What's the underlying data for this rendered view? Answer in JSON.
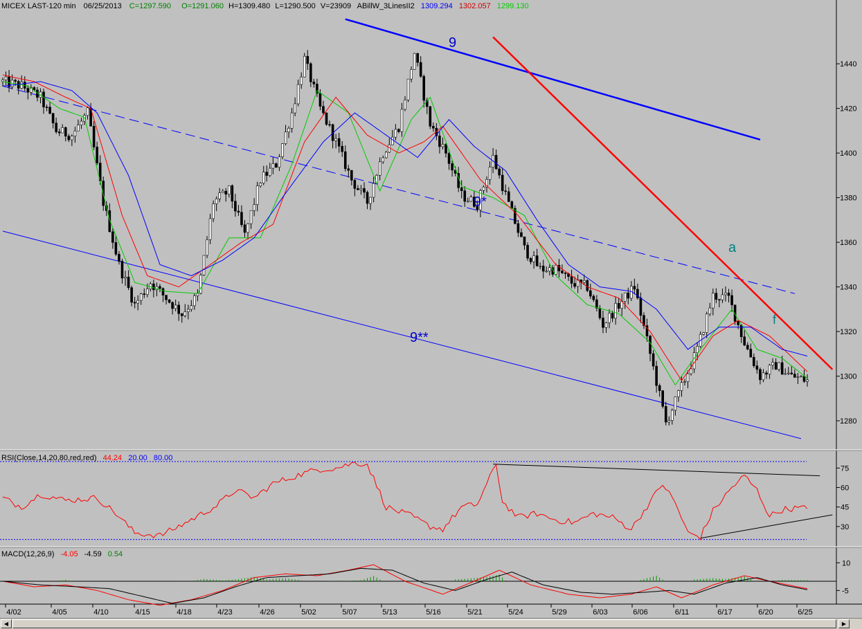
{
  "header": {
    "symbol": "MICEX LAST-120 min",
    "date": "06/25/2013",
    "close": "C=1297.590",
    "open": "O=1291.060",
    "high": "H=1309.480",
    "low": "L=1290.500",
    "volume": "V=23909",
    "indicator": "ABillW_3LinesII2",
    "ind_blue": "1309.294",
    "ind_red": "1302.057",
    "ind_green": "1299.130"
  },
  "rsi_header": {
    "label": "RSI(Close,14,20,80,red,red)",
    "value": "44.24",
    "low": "20.00",
    "high": "80.00"
  },
  "macd_header": {
    "label": "MACD(12,26,9)",
    "v1": "-4.05",
    "v2": "-4.59",
    "v3": "0.54"
  },
  "annotations": {
    "wave_9": "9",
    "wave_9s": "9*",
    "wave_9ss": "9**",
    "wave_a": "a",
    "wave_f": "f"
  },
  "colors": {
    "bg": "#c0c0c0",
    "blue": "#0000ff",
    "red": "#ff0000",
    "green": "#00cc00",
    "teal": "#008080",
    "ann_blue": "#0000cc"
  },
  "chart_data": [
    {
      "type": "candlestick",
      "panel": "price",
      "title": "MICEX LAST-120 min",
      "x_tick_labels": [
        "4/02",
        "4/05",
        "4/10",
        "4/15",
        "4/18",
        "4/23",
        "4/26",
        "5/02",
        "5/07",
        "5/13",
        "5/16",
        "5/21",
        "5/24",
        "5/29",
        "6/03",
        "6/06",
        "6/11",
        "6/17",
        "6/20",
        "6/25"
      ],
      "y_ticks": [
        1280,
        1300,
        1320,
        1340,
        1360,
        1380,
        1400,
        1420,
        1440
      ],
      "ylim": [
        1267,
        1463
      ],
      "close_path": [
        [
          0,
          1432
        ],
        [
          6,
          1430
        ],
        [
          12,
          1425
        ],
        [
          17,
          1410
        ],
        [
          22,
          1408
        ],
        [
          27,
          1418
        ],
        [
          32,
          1378
        ],
        [
          37,
          1350
        ],
        [
          42,
          1332
        ],
        [
          47,
          1342
        ],
        [
          52,
          1335
        ],
        [
          57,
          1328
        ],
        [
          62,
          1336
        ],
        [
          67,
          1378
        ],
        [
          72,
          1383
        ],
        [
          77,
          1363
        ],
        [
          82,
          1388
        ],
        [
          87,
          1395
        ],
        [
          92,
          1418
        ],
        [
          96,
          1442
        ],
        [
          101,
          1420
        ],
        [
          106,
          1405
        ],
        [
          111,
          1388
        ],
        [
          116,
          1378
        ],
        [
          121,
          1400
        ],
        [
          126,
          1412
        ],
        [
          131,
          1445
        ],
        [
          136,
          1413
        ],
        [
          141,
          1400
        ],
        [
          146,
          1381
        ],
        [
          151,
          1377
        ],
        [
          156,
          1398
        ],
        [
          161,
          1377
        ],
        [
          166,
          1357
        ],
        [
          171,
          1348
        ],
        [
          176,
          1348
        ],
        [
          181,
          1342
        ],
        [
          186,
          1340
        ],
        [
          191,
          1323
        ],
        [
          196,
          1332
        ],
        [
          201,
          1340
        ],
        [
          206,
          1310
        ],
        [
          211,
          1279
        ],
        [
          216,
          1295
        ],
        [
          221,
          1312
        ],
        [
          226,
          1336
        ],
        [
          231,
          1335
        ],
        [
          236,
          1315
        ],
        [
          241,
          1300
        ],
        [
          246,
          1305
        ],
        [
          251,
          1300
        ],
        [
          256,
          1298
        ]
      ],
      "x_note": "bar index (0-based, 256 = last bar 6/25)"
    },
    {
      "type": "line",
      "panel": "price",
      "name": "ABillW_3LinesII2",
      "series": [
        {
          "color": "green",
          "points": [
            [
              0,
              1432
            ],
            [
              8,
              1430
            ],
            [
              18,
              1420
            ],
            [
              26,
              1416
            ],
            [
              34,
              1370
            ],
            [
              42,
              1342
            ],
            [
              52,
              1338
            ],
            [
              62,
              1337
            ],
            [
              72,
              1362
            ],
            [
              82,
              1362
            ],
            [
              92,
              1395
            ],
            [
              100,
              1428
            ],
            [
              110,
              1418
            ],
            [
              120,
              1383
            ],
            [
              130,
              1415
            ],
            [
              136,
              1425
            ],
            [
              146,
              1385
            ],
            [
              156,
              1380
            ],
            [
              166,
              1372
            ],
            [
              176,
              1345
            ],
            [
              186,
              1332
            ],
            [
              196,
              1328
            ],
            [
              206,
              1315
            ],
            [
              214,
              1296
            ],
            [
              222,
              1312
            ],
            [
              232,
              1330
            ],
            [
              240,
              1312
            ],
            [
              248,
              1308
            ],
            [
              256,
              1299
            ]
          ]
        },
        {
          "color": "red",
          "points": [
            [
              0,
              1435
            ],
            [
              10,
              1432
            ],
            [
              20,
              1425
            ],
            [
              28,
              1420
            ],
            [
              38,
              1372
            ],
            [
              46,
              1345
            ],
            [
              56,
              1340
            ],
            [
              66,
              1350
            ],
            [
              76,
              1360
            ],
            [
              86,
              1368
            ],
            [
              96,
              1405
            ],
            [
              106,
              1425
            ],
            [
              116,
              1408
            ],
            [
              126,
              1400
            ],
            [
              134,
              1405
            ],
            [
              140,
              1412
            ],
            [
              152,
              1388
            ],
            [
              164,
              1372
            ],
            [
              176,
              1350
            ],
            [
              186,
              1340
            ],
            [
              196,
              1335
            ],
            [
              206,
              1320
            ],
            [
              216,
              1298
            ],
            [
              226,
              1318
            ],
            [
              234,
              1325
            ],
            [
              244,
              1318
            ],
            [
              256,
              1302
            ]
          ]
        },
        {
          "color": "blue",
          "points": [
            [
              0,
              1430
            ],
            [
              12,
              1432
            ],
            [
              22,
              1428
            ],
            [
              30,
              1418
            ],
            [
              40,
              1390
            ],
            [
              50,
              1350
            ],
            [
              60,
              1345
            ],
            [
              70,
              1352
            ],
            [
              80,
              1362
            ],
            [
              90,
              1382
            ],
            [
              102,
              1405
            ],
            [
              112,
              1418
            ],
            [
              122,
              1408
            ],
            [
              132,
              1398
            ],
            [
              142,
              1415
            ],
            [
              150,
              1403
            ],
            [
              160,
              1392
            ],
            [
              170,
              1370
            ],
            [
              180,
              1350
            ],
            [
              190,
              1340
            ],
            [
              200,
              1338
            ],
            [
              208,
              1330
            ],
            [
              218,
              1312
            ],
            [
              228,
              1322
            ],
            [
              238,
              1322
            ],
            [
              248,
              1312
            ],
            [
              256,
              1309
            ]
          ]
        }
      ]
    },
    {
      "type": "line",
      "panel": "price",
      "name": "trendlines",
      "series": [
        {
          "color": "blue",
          "style": "solid-thick",
          "points": [
            [
              109,
              1460
            ],
            [
              241,
              1406
            ]
          ]
        },
        {
          "color": "red",
          "style": "solid-thick",
          "points": [
            [
              156,
              1452
            ],
            [
              264,
              1303
            ]
          ]
        },
        {
          "color": "blue",
          "style": "dashed",
          "points": [
            [
              0,
              1430
            ],
            [
              252,
              1337
            ]
          ]
        },
        {
          "color": "blue",
          "style": "solid",
          "points": [
            [
              0,
              1365
            ],
            [
              254,
              1272
            ]
          ]
        }
      ]
    },
    {
      "type": "line",
      "panel": "rsi",
      "title": "RSI(Close,14,20,80,red,red)",
      "y_ticks": [
        30,
        45,
        60,
        75
      ],
      "ylim": [
        15,
        88
      ],
      "levels": [
        20,
        80
      ],
      "points": [
        [
          0,
          52
        ],
        [
          6,
          45
        ],
        [
          12,
          55
        ],
        [
          20,
          50
        ],
        [
          30,
          52
        ],
        [
          36,
          40
        ],
        [
          42,
          25
        ],
        [
          50,
          23
        ],
        [
          56,
          30
        ],
        [
          62,
          38
        ],
        [
          68,
          46
        ],
        [
          74,
          58
        ],
        [
          80,
          52
        ],
        [
          86,
          63
        ],
        [
          92,
          68
        ],
        [
          100,
          74
        ],
        [
          106,
          75
        ],
        [
          112,
          79
        ],
        [
          116,
          78
        ],
        [
          122,
          45
        ],
        [
          130,
          38
        ],
        [
          136,
          30
        ],
        [
          140,
          28
        ],
        [
          146,
          45
        ],
        [
          151,
          47
        ],
        [
          157,
          78
        ],
        [
          159,
          49
        ],
        [
          164,
          37
        ],
        [
          170,
          40
        ],
        [
          176,
          35
        ],
        [
          182,
          33
        ],
        [
          188,
          40
        ],
        [
          194,
          37
        ],
        [
          200,
          28
        ],
        [
          206,
          49
        ],
        [
          210,
          63
        ],
        [
          214,
          48
        ],
        [
          218,
          25
        ],
        [
          222,
          22
        ],
        [
          226,
          42
        ],
        [
          232,
          60
        ],
        [
          236,
          69
        ],
        [
          240,
          58
        ],
        [
          244,
          38
        ],
        [
          248,
          43
        ],
        [
          252,
          44
        ],
        [
          256,
          44
        ]
      ],
      "trendlines": [
        {
          "color": "black",
          "points": [
            [
              156,
              78
            ],
            [
              260,
              69
            ]
          ]
        },
        {
          "color": "black",
          "points": [
            [
              222,
              21
            ],
            [
              264,
              39
            ]
          ]
        }
      ]
    },
    {
      "type": "line",
      "panel": "macd",
      "title": "MACD(12,26,9)",
      "y_ticks": [
        -5,
        10
      ],
      "ylim": [
        -12,
        18
      ],
      "zero_line": 0,
      "series": [
        {
          "name": "MACD",
          "color": "red",
          "points": [
            [
              0,
              0
            ],
            [
              10,
              -3
            ],
            [
              20,
              -2
            ],
            [
              30,
              -5
            ],
            [
              40,
              -10
            ],
            [
              50,
              -13
            ],
            [
              60,
              -10
            ],
            [
              70,
              -5
            ],
            [
              80,
              2
            ],
            [
              90,
              4
            ],
            [
              100,
              3
            ],
            [
              110,
              6
            ],
            [
              118,
              9
            ],
            [
              128,
              0
            ],
            [
              140,
              -7
            ],
            [
              150,
              0
            ],
            [
              158,
              6
            ],
            [
              168,
              -2
            ],
            [
              180,
              -7
            ],
            [
              190,
              -9
            ],
            [
              200,
              -7
            ],
            [
              208,
              -3
            ],
            [
              216,
              -9
            ],
            [
              226,
              -2
            ],
            [
              236,
              3
            ],
            [
              244,
              0
            ],
            [
              256,
              -4.05
            ]
          ]
        },
        {
          "name": "Signal",
          "color": "black",
          "points": [
            [
              0,
              0
            ],
            [
              12,
              -2
            ],
            [
              24,
              -3
            ],
            [
              34,
              -4
            ],
            [
              44,
              -8
            ],
            [
              54,
              -12
            ],
            [
              64,
              -9
            ],
            [
              74,
              -3
            ],
            [
              84,
              2
            ],
            [
              94,
              3
            ],
            [
              104,
              4
            ],
            [
              114,
              7
            ],
            [
              124,
              6
            ],
            [
              134,
              -1
            ],
            [
              144,
              -5
            ],
            [
              154,
              1
            ],
            [
              162,
              5
            ],
            [
              172,
              -2
            ],
            [
              184,
              -6
            ],
            [
              194,
              -7
            ],
            [
              204,
              -6
            ],
            [
              212,
              -5
            ],
            [
              220,
              -7
            ],
            [
              230,
              -1
            ],
            [
              240,
              2
            ],
            [
              248,
              -2
            ],
            [
              256,
              -4.59
            ]
          ]
        }
      ]
    }
  ]
}
